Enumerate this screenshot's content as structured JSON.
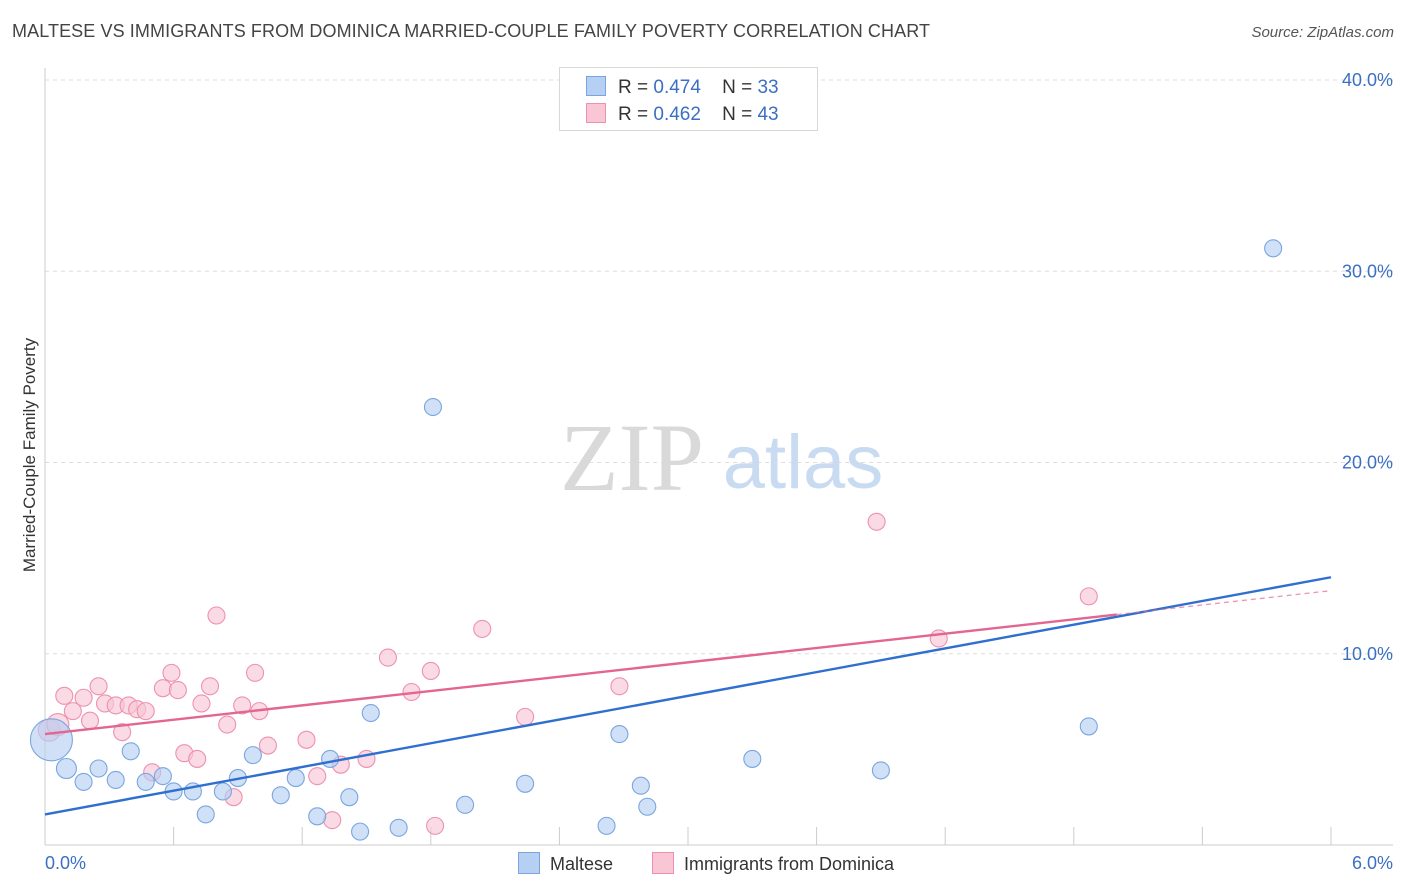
{
  "title": "MALTESE VS IMMIGRANTS FROM DOMINICA MARRIED-COUPLE FAMILY POVERTY CORRELATION CHART",
  "source": "Source: ZipAtlas.com",
  "watermark": {
    "zip": "ZIP",
    "atlas": "atlas"
  },
  "legend": {
    "r_label": "R =",
    "n_label": "N =",
    "series1": {
      "r": "0.474",
      "n": "33"
    },
    "series2": {
      "r": "0.462",
      "n": "43"
    }
  },
  "bottom_legend": {
    "series1": "Maltese",
    "series2": "Immigrants from Dominica"
  },
  "colors": {
    "blue_fill": "#b5d0f2",
    "blue_stroke": "#7aa6df",
    "blue_line": "#2f6fcf",
    "pink_fill": "#f8c6d5",
    "pink_stroke": "#ee91ad",
    "pink_line": "#e2668f",
    "tick_label": "#3b6fc4"
  },
  "chart_data": {
    "type": "scatter",
    "title": "MALTESE VS IMMIGRANTS FROM DOMINICA MARRIED-COUPLE FAMILY POVERTY CORRELATION CHART",
    "xlabel": "",
    "ylabel": "Married-Couple Family Poverty",
    "xlim": [
      0,
      6
    ],
    "ylim": [
      0,
      40
    ],
    "x_tick_labels": [
      "0.0%",
      "6.0%"
    ],
    "y_tick_labels": [
      "10.0%",
      "20.0%",
      "30.0%",
      "40.0%"
    ],
    "y_ticks": [
      10,
      20,
      30,
      40
    ],
    "grid": true,
    "series": [
      {
        "name": "Maltese",
        "r": 0.474,
        "n": 33,
        "points": [
          [
            0.03,
            5.5
          ],
          [
            0.1,
            4.0
          ],
          [
            0.18,
            3.3
          ],
          [
            0.25,
            4.0
          ],
          [
            0.33,
            3.4
          ],
          [
            0.4,
            4.9
          ],
          [
            0.47,
            3.3
          ],
          [
            0.55,
            3.6
          ],
          [
            0.6,
            2.8
          ],
          [
            0.69,
            2.8
          ],
          [
            0.75,
            1.6
          ],
          [
            0.83,
            2.8
          ],
          [
            0.9,
            3.5
          ],
          [
            0.97,
            4.7
          ],
          [
            1.1,
            2.6
          ],
          [
            1.17,
            3.5
          ],
          [
            1.27,
            1.5
          ],
          [
            1.33,
            4.5
          ],
          [
            1.42,
            2.5
          ],
          [
            1.47,
            0.7
          ],
          [
            1.52,
            6.9
          ],
          [
            1.65,
            0.9
          ],
          [
            1.81,
            22.9
          ],
          [
            1.96,
            2.1
          ],
          [
            2.24,
            3.2
          ],
          [
            2.62,
            1.0
          ],
          [
            2.68,
            5.8
          ],
          [
            2.78,
            3.1
          ],
          [
            2.81,
            2.0
          ],
          [
            3.3,
            4.5
          ],
          [
            3.9,
            3.9
          ],
          [
            4.87,
            6.2
          ],
          [
            5.73,
            31.2
          ]
        ],
        "trend": {
          "x": [
            0,
            6
          ],
          "y": [
            1.6,
            14.0
          ]
        }
      },
      {
        "name": "Immigrants from Dominica",
        "r": 0.462,
        "n": 43,
        "points": [
          [
            0.02,
            6.0
          ],
          [
            0.06,
            6.3
          ],
          [
            0.09,
            7.8
          ],
          [
            0.13,
            7.0
          ],
          [
            0.18,
            7.7
          ],
          [
            0.21,
            6.5
          ],
          [
            0.25,
            8.3
          ],
          [
            0.28,
            7.4
          ],
          [
            0.33,
            7.3
          ],
          [
            0.36,
            5.9
          ],
          [
            0.39,
            7.3
          ],
          [
            0.43,
            7.1
          ],
          [
            0.47,
            7.0
          ],
          [
            0.5,
            3.8
          ],
          [
            0.55,
            8.2
          ],
          [
            0.59,
            9.0
          ],
          [
            0.62,
            8.1
          ],
          [
            0.65,
            4.8
          ],
          [
            0.71,
            4.5
          ],
          [
            0.73,
            7.4
          ],
          [
            0.77,
            8.3
          ],
          [
            0.8,
            12.0
          ],
          [
            0.85,
            6.3
          ],
          [
            0.88,
            2.5
          ],
          [
            0.92,
            7.3
          ],
          [
            0.98,
            9.0
          ],
          [
            1.0,
            7.0
          ],
          [
            1.04,
            5.2
          ],
          [
            1.22,
            5.5
          ],
          [
            1.27,
            3.6
          ],
          [
            1.34,
            1.3
          ],
          [
            1.38,
            4.2
          ],
          [
            1.5,
            4.5
          ],
          [
            1.6,
            9.8
          ],
          [
            1.71,
            8.0
          ],
          [
            1.8,
            9.1
          ],
          [
            1.82,
            1.0
          ],
          [
            2.04,
            11.3
          ],
          [
            2.24,
            6.7
          ],
          [
            2.68,
            8.3
          ],
          [
            3.88,
            16.9
          ],
          [
            4.17,
            10.8
          ],
          [
            4.87,
            13.0
          ]
        ],
        "trend": {
          "x": [
            0,
            6
          ],
          "y": [
            5.8,
            13.3
          ]
        },
        "trend_solid_until_x": 5.0
      }
    ]
  }
}
